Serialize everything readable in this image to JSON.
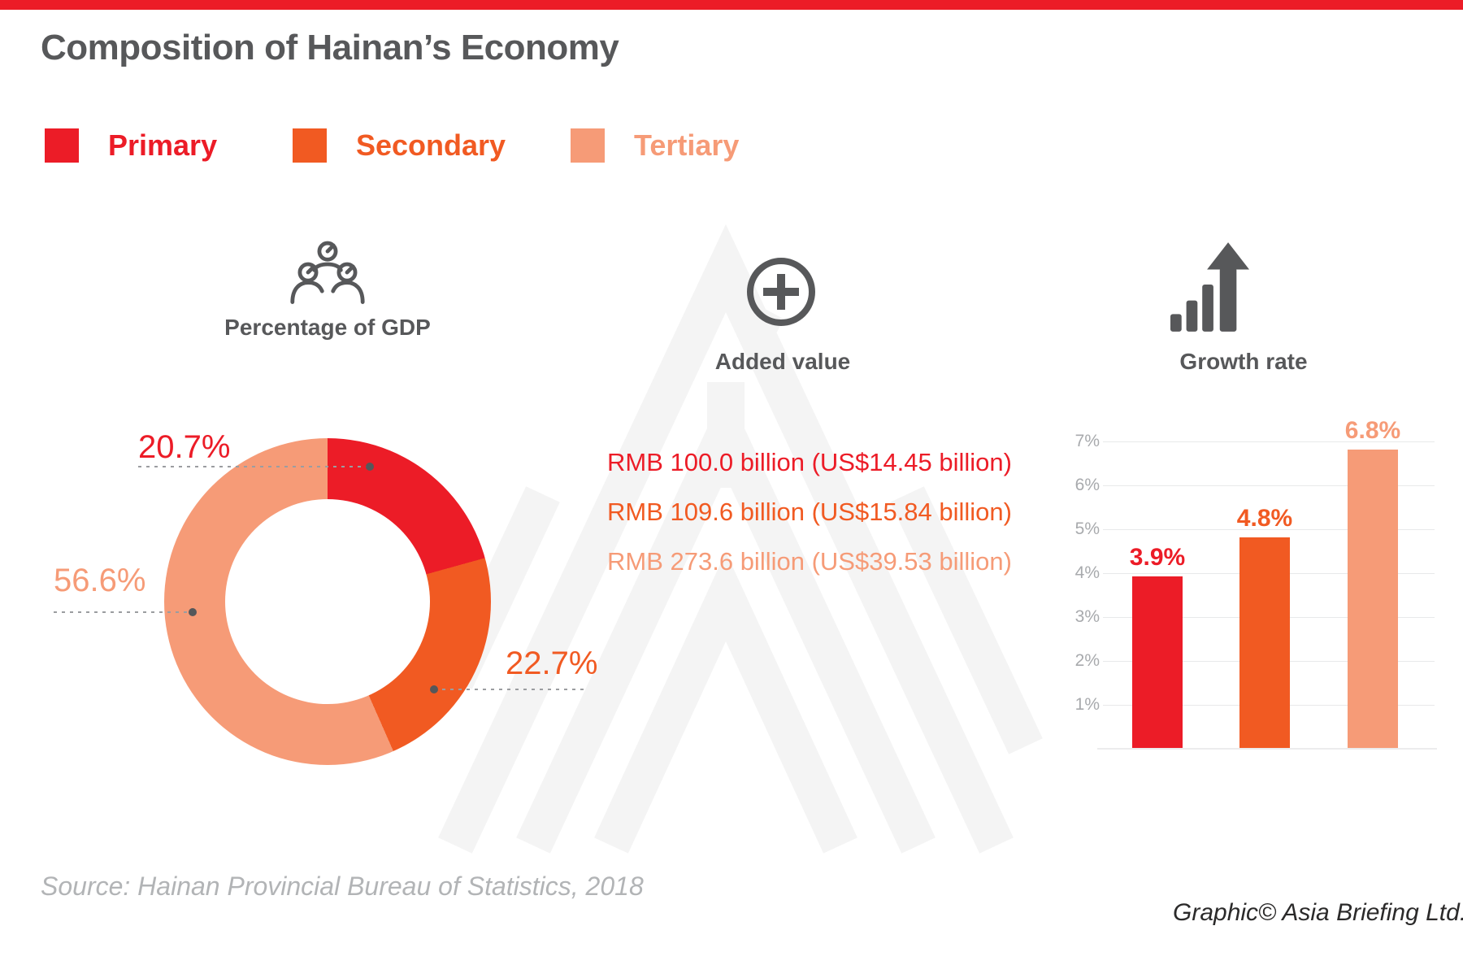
{
  "title": "Composition of Hainan’s Economy",
  "colors": {
    "primary": "#ec1c27",
    "secondary": "#f15a22",
    "tertiary": "#f69b77",
    "heading_gray": "#57585a",
    "tick_gray": "#a8aaad",
    "source_gray": "#b2b4b6",
    "credit_dark": "#2b2a2a",
    "watermark_gray": "#f4f4f4",
    "leader_gray": "#9b9da0"
  },
  "legend": {
    "items": [
      {
        "label": "Primary",
        "color_key": "primary"
      },
      {
        "label": "Secondary",
        "color_key": "secondary"
      },
      {
        "label": "Tertiary",
        "color_key": "tertiary"
      }
    ]
  },
  "sections": {
    "gdp": {
      "title": "Percentage of GDP",
      "icon": "people-group-icon"
    },
    "added": {
      "title": "Added value",
      "icon": "plus-circle-icon"
    },
    "growth": {
      "title": "Growth rate",
      "icon": "rising-bars-arrow-icon"
    }
  },
  "added_value": {
    "lines": [
      {
        "text": "RMB 100.0 billion (US$14.45 billion)",
        "rmb_billion": 100.0,
        "usd_billion": 14.45,
        "color_key": "primary"
      },
      {
        "text": "RMB 109.6 billion (US$15.84 billion)",
        "rmb_billion": 109.6,
        "usd_billion": 15.84,
        "color_key": "secondary"
      },
      {
        "text": "RMB 273.6 billion (US$39.53 billion)",
        "rmb_billion": 273.6,
        "usd_billion": 39.53,
        "color_key": "tertiary"
      }
    ]
  },
  "chart_data": [
    {
      "type": "pie",
      "subtype": "donut",
      "title": "Percentage of GDP",
      "categories": [
        "Primary",
        "Secondary",
        "Tertiary"
      ],
      "values": [
        20.7,
        22.7,
        56.6
      ],
      "unit": "%",
      "labels": [
        "20.7%",
        "22.7%",
        "56.6%"
      ],
      "color_keys": [
        "primary",
        "secondary",
        "tertiary"
      ],
      "start_angle": "top, clockwise",
      "legend_position": "top-of-page"
    },
    {
      "type": "bar",
      "title": "Growth rate",
      "categories": [
        "Primary",
        "Secondary",
        "Tertiary"
      ],
      "values": [
        3.9,
        4.8,
        6.8
      ],
      "labels": [
        "3.9%",
        "4.8%",
        "6.8%"
      ],
      "unit": "%",
      "ylim": [
        0,
        7
      ],
      "yticks": [
        "7%",
        "6%",
        "5%",
        "4%",
        "3%",
        "2%",
        "1%"
      ],
      "grid": true,
      "color_keys": [
        "primary",
        "secondary",
        "tertiary"
      ]
    }
  ],
  "source": "Source: Hainan Provincial Bureau of Statistics, 2018",
  "credit": "Graphic© Asia Briefing Ltd."
}
